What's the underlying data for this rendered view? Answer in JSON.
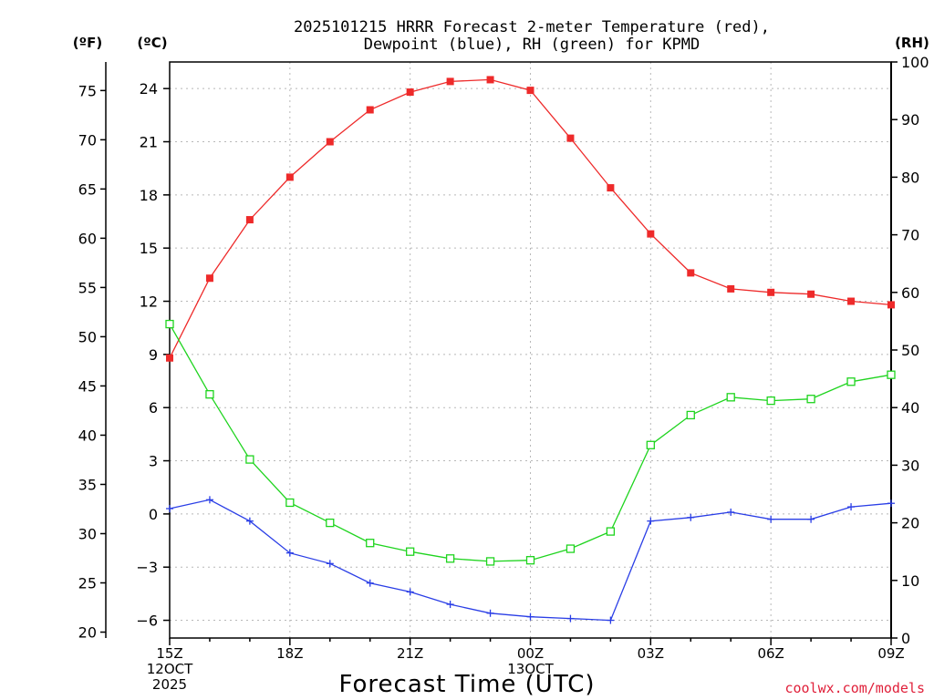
{
  "title_line1": "2025101215 HRRR Forecast 2-meter Temperature (red),",
  "title_line2": "Dewpoint (blue), RH (green) for KPMD",
  "credit": "coolwx.com/models",
  "colors": {
    "temperature": "#ee2a2a",
    "dewpoint": "#2a3ee6",
    "rh": "#1ed41e"
  },
  "chart_data": {
    "type": "line",
    "title": "2025101215 HRRR Forecast 2-meter Temperature (red), Dewpoint (blue), RH (green) for KPMD",
    "xlabel": "Forecast Time (UTC)",
    "units": {
      "fahrenheit": "(ºF)",
      "celsius": "(ºC)",
      "rh": "(RH)"
    },
    "x": [
      "15Z",
      "16Z",
      "17Z",
      "18Z",
      "19Z",
      "20Z",
      "21Z",
      "22Z",
      "23Z",
      "00Z",
      "01Z",
      "02Z",
      "03Z",
      "04Z",
      "05Z",
      "06Z",
      "07Z",
      "08Z",
      "09Z"
    ],
    "x_tick_labels": [
      {
        "index": 0,
        "lines": [
          "15Z",
          "12OCT",
          "2025"
        ]
      },
      {
        "index": 3,
        "lines": [
          "18Z"
        ]
      },
      {
        "index": 6,
        "lines": [
          "21Z"
        ]
      },
      {
        "index": 9,
        "lines": [
          "00Z",
          "13OCT"
        ]
      },
      {
        "index": 12,
        "lines": [
          "03Z"
        ]
      },
      {
        "index": 15,
        "lines": [
          "06Z"
        ]
      },
      {
        "index": 18,
        "lines": [
          "09Z"
        ]
      }
    ],
    "ylim_celsius": [
      -7,
      25.5
    ],
    "celsius_ticks": [
      24,
      21,
      18,
      15,
      12,
      9,
      6,
      3,
      0,
      -3,
      -6
    ],
    "fahrenheit_ticks": [
      75,
      70,
      65,
      60,
      55,
      50,
      45,
      40,
      35,
      30,
      25,
      20
    ],
    "ylim_rh": [
      0,
      100
    ],
    "rh_ticks": [
      100,
      90,
      80,
      70,
      60,
      50,
      40,
      30,
      20,
      10,
      0
    ],
    "grid": true,
    "series": [
      {
        "name": "Temperature",
        "unit": "C",
        "marker": "filled-square",
        "values": [
          8.8,
          13.3,
          16.6,
          19.0,
          21.0,
          22.8,
          23.8,
          24.4,
          24.5,
          23.9,
          21.2,
          18.4,
          15.8,
          13.6,
          12.7,
          12.5,
          12.4,
          12.0,
          11.8
        ]
      },
      {
        "name": "Dewpoint",
        "unit": "C",
        "marker": "plus",
        "values": [
          0.3,
          0.8,
          -0.4,
          -2.2,
          -2.8,
          -3.9,
          -4.4,
          -5.1,
          -5.6,
          -5.8,
          -5.9,
          -6.0,
          -0.4,
          -0.2,
          0.1,
          -0.3,
          -0.3,
          0.4,
          0.6
        ]
      },
      {
        "name": "RH",
        "unit": "%",
        "marker": "open-square",
        "values": [
          54.5,
          42.3,
          31.0,
          23.5,
          20.0,
          16.5,
          15.0,
          13.8,
          13.3,
          13.5,
          15.5,
          18.5,
          33.5,
          38.7,
          41.8,
          41.2,
          41.5,
          44.5,
          45.7
        ]
      }
    ]
  }
}
